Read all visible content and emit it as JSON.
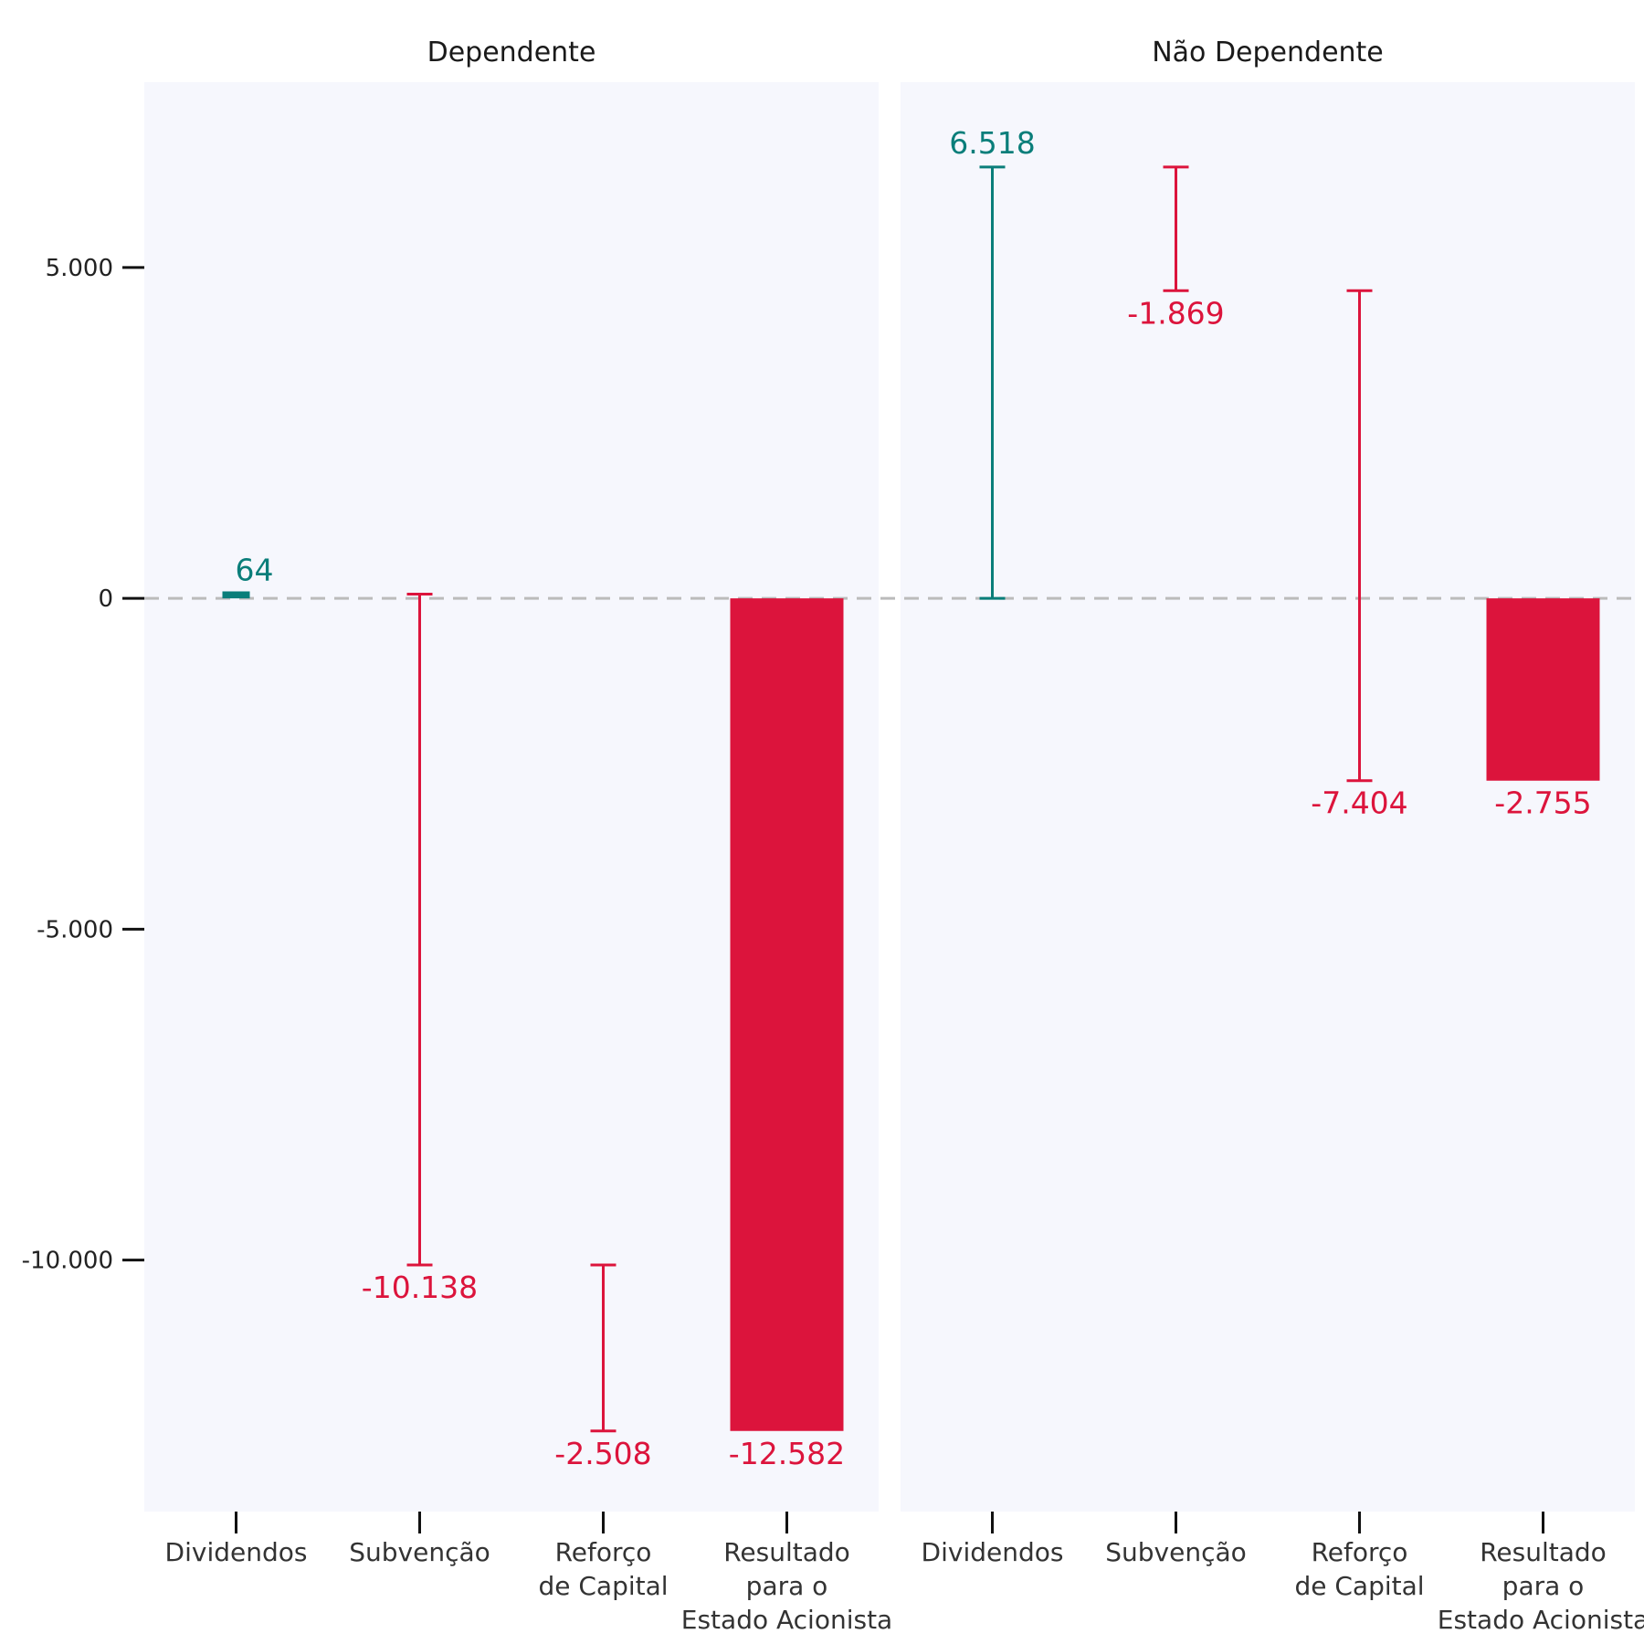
{
  "colors": {
    "positive": "#0a7e7a",
    "negative": "#dc143c",
    "panel_bg": "#f6f7fd",
    "zero_line": "#bbbbbb",
    "axis_text": "#222222"
  },
  "chart_data": {
    "type": "bar",
    "subtype": "waterfall",
    "ylim": [
      -13800,
      7800
    ],
    "yticks": [
      {
        "value": 5000,
        "label": "5.000"
      },
      {
        "value": 0,
        "label": "0"
      },
      {
        "value": -5000,
        "label": "-5.000"
      },
      {
        "value": -10000,
        "label": "-10.000"
      }
    ],
    "panels": [
      {
        "title": "Dependente",
        "steps": [
          {
            "category": [
              "Dividendos"
            ],
            "value": 64,
            "label": "64",
            "kind": "delta"
          },
          {
            "category": [
              "Subvenção"
            ],
            "value": -10138,
            "label": "-10.138",
            "kind": "delta"
          },
          {
            "category": [
              "Reforço",
              "de Capital"
            ],
            "value": -2508,
            "label": "-2.508",
            "kind": "delta"
          },
          {
            "category": [
              "Resultado",
              "para o",
              "Estado Acionista"
            ],
            "value": -12582,
            "label": "-12.582",
            "kind": "total"
          }
        ]
      },
      {
        "title": "Não Dependente",
        "steps": [
          {
            "category": [
              "Dividendos"
            ],
            "value": 6518,
            "label": "6.518",
            "kind": "delta"
          },
          {
            "category": [
              "Subvenção"
            ],
            "value": -1869,
            "label": "-1.869",
            "kind": "delta"
          },
          {
            "category": [
              "Reforço",
              "de Capital"
            ],
            "value": -7404,
            "label": "-7.404",
            "kind": "delta"
          },
          {
            "category": [
              "Resultado",
              "para o",
              "Estado Acionista"
            ],
            "value": -2755,
            "label": "-2.755",
            "kind": "total"
          }
        ]
      }
    ]
  }
}
